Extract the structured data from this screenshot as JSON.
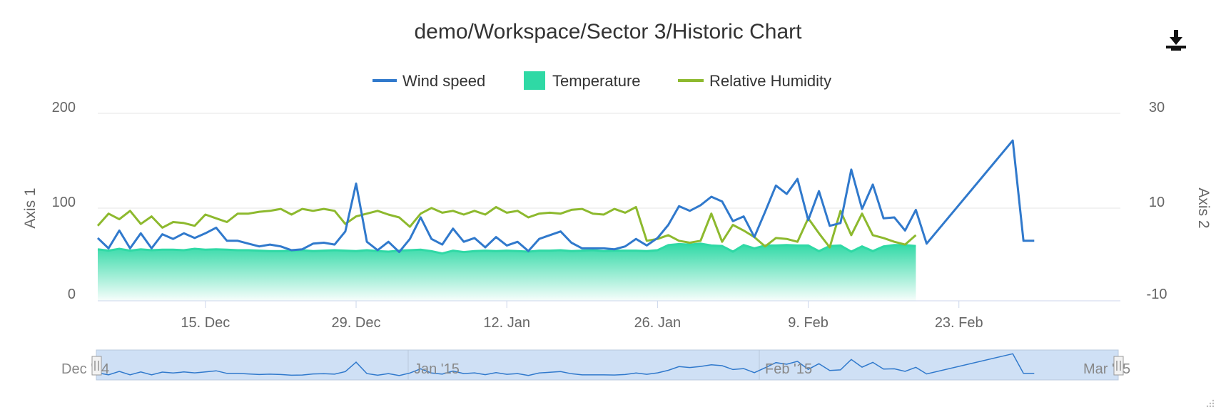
{
  "chart_data": {
    "type": "line",
    "title": "demo/Workspace/Sector 3/Historic Chart",
    "legend": [
      "Wind speed",
      "Temperature",
      "Relative Humidity"
    ],
    "legend_position": "top-center",
    "x_axis": {
      "type": "datetime",
      "range": [
        "2014-12-05",
        "2015-03-10"
      ],
      "tick_labels": [
        "15. Dec",
        "29. Dec",
        "12. Jan",
        "26. Jan",
        "9. Feb",
        "23. Feb"
      ],
      "tick_dates": [
        "2014-12-15",
        "2014-12-29",
        "2015-01-12",
        "2015-01-26",
        "2015-02-09",
        "2015-02-23"
      ]
    },
    "y_axis_left": {
      "title": "Axis 1",
      "range": [
        0,
        200
      ],
      "tick_labels": [
        "0",
        "100",
        "200"
      ]
    },
    "y_axis_right": {
      "title": "Axis 2",
      "range": [
        -10,
        30
      ],
      "tick_labels": [
        "-10",
        "10",
        "30"
      ]
    },
    "grid": true,
    "navigator_labels": [
      "Dec '14",
      "Jan '15",
      "Feb '15",
      "Mar '15"
    ],
    "colors": {
      "wind": "#3079cc",
      "temperature": "#2fd9a5",
      "humidity": "#8db92e"
    },
    "series": [
      {
        "name": "Wind speed",
        "type": "line",
        "axis": "left",
        "points": [
          [
            "2014-12-05",
            67
          ],
          [
            "2014-12-06",
            56
          ],
          [
            "2014-12-07",
            75
          ],
          [
            "2014-12-08",
            56
          ],
          [
            "2014-12-09",
            72
          ],
          [
            "2014-12-10",
            56
          ],
          [
            "2014-12-11",
            71
          ],
          [
            "2014-12-12",
            66
          ],
          [
            "2014-12-13",
            72
          ],
          [
            "2014-12-14",
            67
          ],
          [
            "2014-12-15",
            72
          ],
          [
            "2014-12-16",
            78
          ],
          [
            "2014-12-17",
            64
          ],
          [
            "2014-12-18",
            64
          ],
          [
            "2014-12-19",
            61
          ],
          [
            "2014-12-20",
            58
          ],
          [
            "2014-12-21",
            60
          ],
          [
            "2014-12-22",
            58
          ],
          [
            "2014-12-23",
            54
          ],
          [
            "2014-12-24",
            55
          ],
          [
            "2014-12-25",
            61
          ],
          [
            "2014-12-26",
            62
          ],
          [
            "2014-12-27",
            60
          ],
          [
            "2014-12-28",
            74
          ],
          [
            "2014-12-29",
            125
          ],
          [
            "2014-12-30",
            63
          ],
          [
            "2014-12-31",
            54
          ],
          [
            "2015-01-01",
            63
          ],
          [
            "2015-01-02",
            52
          ],
          [
            "2015-01-03",
            66
          ],
          [
            "2015-01-04",
            89
          ],
          [
            "2015-01-05",
            66
          ],
          [
            "2015-01-06",
            60
          ],
          [
            "2015-01-07",
            77
          ],
          [
            "2015-01-08",
            63
          ],
          [
            "2015-01-09",
            67
          ],
          [
            "2015-01-10",
            57
          ],
          [
            "2015-01-11",
            68
          ],
          [
            "2015-01-12",
            59
          ],
          [
            "2015-01-13",
            63
          ],
          [
            "2015-01-14",
            53
          ],
          [
            "2015-01-15",
            66
          ],
          [
            "2015-01-16",
            70
          ],
          [
            "2015-01-17",
            74
          ],
          [
            "2015-01-18",
            62
          ],
          [
            "2015-01-19",
            56
          ],
          [
            "2015-01-20",
            56
          ],
          [
            "2015-01-21",
            56
          ],
          [
            "2015-01-22",
            55
          ],
          [
            "2015-01-23",
            58
          ],
          [
            "2015-01-24",
            66
          ],
          [
            "2015-01-25",
            59
          ],
          [
            "2015-01-26",
            67
          ],
          [
            "2015-01-27",
            81
          ],
          [
            "2015-01-28",
            101
          ],
          [
            "2015-01-29",
            96
          ],
          [
            "2015-01-30",
            102
          ],
          [
            "2015-01-31",
            111
          ],
          [
            "2015-02-01",
            106
          ],
          [
            "2015-02-02",
            85
          ],
          [
            "2015-02-03",
            90
          ],
          [
            "2015-02-04",
            68
          ],
          [
            "2015-02-05",
            95
          ],
          [
            "2015-02-06",
            123
          ],
          [
            "2015-02-07",
            114
          ],
          [
            "2015-02-08",
            130
          ],
          [
            "2015-02-09",
            86
          ],
          [
            "2015-02-10",
            117
          ],
          [
            "2015-02-11",
            80
          ],
          [
            "2015-02-12",
            83
          ],
          [
            "2015-02-13",
            140
          ],
          [
            "2015-02-14",
            98
          ],
          [
            "2015-02-15",
            124
          ],
          [
            "2015-02-16",
            88
          ],
          [
            "2015-02-17",
            89
          ],
          [
            "2015-02-18",
            75
          ],
          [
            "2015-02-19",
            97
          ],
          [
            "2015-02-20",
            61
          ],
          [
            "2015-02-28",
            171
          ],
          [
            "2015-03-01",
            64
          ],
          [
            "2015-03-02",
            64
          ]
        ]
      },
      {
        "name": "Temperature",
        "type": "area",
        "axis": "right",
        "points": [
          [
            "2014-12-05",
            1.0
          ],
          [
            "2014-12-06",
            0.7
          ],
          [
            "2014-12-07",
            1.1
          ],
          [
            "2014-12-08",
            0.7
          ],
          [
            "2014-12-09",
            1.0
          ],
          [
            "2014-12-10",
            0.8
          ],
          [
            "2014-12-11",
            0.9
          ],
          [
            "2014-12-12",
            0.9
          ],
          [
            "2014-12-13",
            0.8
          ],
          [
            "2014-12-14",
            1.1
          ],
          [
            "2014-12-15",
            0.9
          ],
          [
            "2014-12-16",
            1.0
          ],
          [
            "2014-12-17",
            0.9
          ],
          [
            "2014-12-18",
            0.8
          ],
          [
            "2014-12-19",
            0.8
          ],
          [
            "2014-12-20",
            0.7
          ],
          [
            "2014-12-21",
            0.6
          ],
          [
            "2014-12-22",
            0.6
          ],
          [
            "2014-12-23",
            0.7
          ],
          [
            "2014-12-24",
            0.8
          ],
          [
            "2014-12-25",
            0.6
          ],
          [
            "2014-12-26",
            0.7
          ],
          [
            "2014-12-27",
            0.8
          ],
          [
            "2014-12-28",
            0.7
          ],
          [
            "2014-12-29",
            0.6
          ],
          [
            "2014-12-30",
            0.8
          ],
          [
            "2014-12-31",
            0.6
          ],
          [
            "2015-01-01",
            0.5
          ],
          [
            "2015-01-02",
            0.7
          ],
          [
            "2015-01-03",
            0.8
          ],
          [
            "2015-01-04",
            0.9
          ],
          [
            "2015-01-05",
            0.6
          ],
          [
            "2015-01-06",
            0.1
          ],
          [
            "2015-01-07",
            0.7
          ],
          [
            "2015-01-08",
            0.4
          ],
          [
            "2015-01-09",
            0.6
          ],
          [
            "2015-01-10",
            0.7
          ],
          [
            "2015-01-11",
            0.6
          ],
          [
            "2015-01-12",
            0.7
          ],
          [
            "2015-01-13",
            0.6
          ],
          [
            "2015-01-14",
            0.5
          ],
          [
            "2015-01-15",
            0.7
          ],
          [
            "2015-01-16",
            0.7
          ],
          [
            "2015-01-17",
            0.8
          ],
          [
            "2015-01-18",
            0.6
          ],
          [
            "2015-01-19",
            0.7
          ],
          [
            "2015-01-20",
            0.8
          ],
          [
            "2015-01-21",
            0.6
          ],
          [
            "2015-01-22",
            0.7
          ],
          [
            "2015-01-23",
            0.7
          ],
          [
            "2015-01-24",
            0.7
          ],
          [
            "2015-01-25",
            0.6
          ],
          [
            "2015-01-26",
            0.8
          ],
          [
            "2015-01-27",
            1.9
          ],
          [
            "2015-01-28",
            2.1
          ],
          [
            "2015-01-29",
            2.0
          ],
          [
            "2015-01-30",
            2.2
          ],
          [
            "2015-01-31",
            1.8
          ],
          [
            "2015-02-01",
            1.7
          ],
          [
            "2015-02-02",
            0.5
          ],
          [
            "2015-02-03",
            1.9
          ],
          [
            "2015-02-04",
            1.2
          ],
          [
            "2015-02-05",
            1.8
          ],
          [
            "2015-02-06",
            1.8
          ],
          [
            "2015-02-07",
            1.9
          ],
          [
            "2015-02-08",
            1.8
          ],
          [
            "2015-02-09",
            1.8
          ],
          [
            "2015-02-10",
            0.6
          ],
          [
            "2015-02-11",
            1.7
          ],
          [
            "2015-02-12",
            1.8
          ],
          [
            "2015-02-13",
            0.5
          ],
          [
            "2015-02-14",
            1.6
          ],
          [
            "2015-02-15",
            0.6
          ],
          [
            "2015-02-16",
            1.6
          ],
          [
            "2015-02-17",
            1.9
          ],
          [
            "2015-02-18",
            1.9
          ],
          [
            "2015-02-19",
            1.7
          ]
        ]
      },
      {
        "name": "Relative Humidity",
        "type": "line",
        "axis": "left",
        "points": [
          [
            "2014-12-05",
            80
          ],
          [
            "2014-12-06",
            93
          ],
          [
            "2014-12-07",
            87
          ],
          [
            "2014-12-08",
            96
          ],
          [
            "2014-12-09",
            82
          ],
          [
            "2014-12-10",
            90
          ],
          [
            "2014-12-11",
            78
          ],
          [
            "2014-12-12",
            84
          ],
          [
            "2014-12-13",
            83
          ],
          [
            "2014-12-14",
            80
          ],
          [
            "2014-12-15",
            92
          ],
          [
            "2014-12-16",
            88
          ],
          [
            "2014-12-17",
            84
          ],
          [
            "2014-12-18",
            93
          ],
          [
            "2014-12-19",
            93
          ],
          [
            "2014-12-20",
            95
          ],
          [
            "2014-12-21",
            96
          ],
          [
            "2014-12-22",
            98
          ],
          [
            "2014-12-23",
            92
          ],
          [
            "2014-12-24",
            98
          ],
          [
            "2014-12-25",
            96
          ],
          [
            "2014-12-26",
            98
          ],
          [
            "2014-12-27",
            96
          ],
          [
            "2014-12-28",
            82
          ],
          [
            "2014-12-29",
            90
          ],
          [
            "2014-12-30",
            93
          ],
          [
            "2014-12-31",
            96
          ],
          [
            "2015-01-01",
            92
          ],
          [
            "2015-01-02",
            89
          ],
          [
            "2015-01-03",
            79
          ],
          [
            "2015-01-04",
            93
          ],
          [
            "2015-01-05",
            99
          ],
          [
            "2015-01-06",
            94
          ],
          [
            "2015-01-07",
            96
          ],
          [
            "2015-01-08",
            92
          ],
          [
            "2015-01-09",
            96
          ],
          [
            "2015-01-10",
            92
          ],
          [
            "2015-01-11",
            100
          ],
          [
            "2015-01-12",
            94
          ],
          [
            "2015-01-13",
            96
          ],
          [
            "2015-01-14",
            89
          ],
          [
            "2015-01-15",
            93
          ],
          [
            "2015-01-16",
            94
          ],
          [
            "2015-01-17",
            93
          ],
          [
            "2015-01-18",
            97
          ],
          [
            "2015-01-19",
            98
          ],
          [
            "2015-01-20",
            93
          ],
          [
            "2015-01-21",
            92
          ],
          [
            "2015-01-22",
            98
          ],
          [
            "2015-01-23",
            94
          ],
          [
            "2015-01-24",
            100
          ],
          [
            "2015-01-25",
            64
          ],
          [
            "2015-01-26",
            66
          ],
          [
            "2015-01-27",
            70
          ],
          [
            "2015-01-28",
            64
          ],
          [
            "2015-01-29",
            62
          ],
          [
            "2015-01-30",
            64
          ],
          [
            "2015-01-31",
            93
          ],
          [
            "2015-02-01",
            63
          ],
          [
            "2015-02-02",
            81
          ],
          [
            "2015-02-03",
            75
          ],
          [
            "2015-02-04",
            68
          ],
          [
            "2015-02-05",
            58
          ],
          [
            "2015-02-06",
            67
          ],
          [
            "2015-02-07",
            66
          ],
          [
            "2015-02-08",
            63
          ],
          [
            "2015-02-09",
            88
          ],
          [
            "2015-02-10",
            72
          ],
          [
            "2015-02-11",
            57
          ],
          [
            "2015-02-12",
            96
          ],
          [
            "2015-02-13",
            70
          ],
          [
            "2015-02-14",
            93
          ],
          [
            "2015-02-15",
            70
          ],
          [
            "2015-02-16",
            67
          ],
          [
            "2015-02-17",
            63
          ],
          [
            "2015-02-18",
            60
          ],
          [
            "2015-02-19",
            70
          ]
        ]
      }
    ]
  }
}
